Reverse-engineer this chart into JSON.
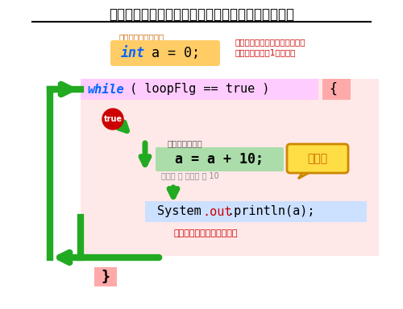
{
  "title": "ループ時の変数の宣言場所による違い（ループ外）",
  "bg_color": "#ffffff",
  "title_color": "#000000",
  "label_sengen": "変数の宣言と初期化",
  "label_sengen_color": "#cc6600",
  "box_int_bg": "#ffcc66",
  "box_int_text_int": "int",
  "box_int_text_rest": " a = 0;",
  "box_int_text_color_int": "#0066ff",
  "box_int_text_color_rest": "#000000",
  "annotation_right_line1": "ループ外で宣言されているので",
  "annotation_right_line2": "初期化はここで1回だけ。",
  "annotation_right_color": "#cc0000",
  "box_while_bg": "#ffccff",
  "box_while_brace_bg": "#ffaaaa",
  "box_while_text_while": "while",
  "box_while_text_rest": " ( loopFlg == true ) ",
  "box_while_brace": "{",
  "box_while_text_color_while": "#0066ff",
  "box_while_text_color_rest": "#000000",
  "true_circle_bg": "#cc0000",
  "true_circle_text": "true",
  "true_circle_text_color": "#ffffff",
  "loop_body_bg": "#ffe8e8",
  "label_kazan": "変数の加算処理",
  "label_kazan_color": "#555555",
  "box_kazan_bg": "#aaddaa",
  "box_kazan_text": "a = a + 10;",
  "box_kazan_text_color": "#000000",
  "annotation_kazan": "加算値 ＝ 前回値 ＋ 10",
  "annotation_kazan_color": "#888888",
  "callout_text": "加算値",
  "callout_bg": "#ffdd44",
  "callout_text_color": "#cc6600",
  "callout_border_color": "#cc8800",
  "box_print_bg": "#cce0ff",
  "box_print_text": "System.out.println(a);",
  "box_print_text_color_system": "#000000",
  "box_print_text_color_out": "#cc0000",
  "annotation_print": "加算された値が表示される",
  "annotation_print_color": "#cc0000",
  "brace_close_text": "}",
  "brace_close_bg": "#ffaaaa",
  "arrow_color": "#22aa22",
  "arrow_lw": 5
}
